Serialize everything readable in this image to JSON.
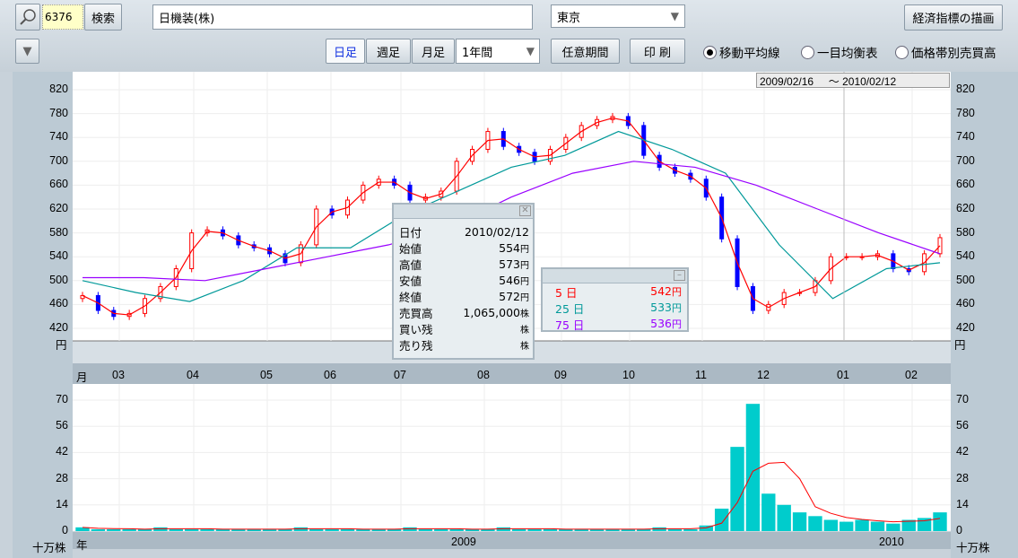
{
  "toolbar": {
    "code_value": "6376",
    "search_label": "検索",
    "company_name": "日機装(株)",
    "market_value": "東京",
    "econ_button": "経済指標の描画",
    "period_tabs": [
      "日足",
      "週足",
      "月足"
    ],
    "active_tab": "日足",
    "range_value": "1年間",
    "custom_period": "任意期間",
    "print": "印 刷",
    "radios": [
      {
        "label": "移動平均線",
        "checked": true
      },
      {
        "label": "一目均衡表",
        "checked": false
      },
      {
        "label": "価格帯別売買高",
        "checked": false
      }
    ]
  },
  "date_range": {
    "from": "2009/02/16",
    "sep": "～",
    "to": "2010/02/12"
  },
  "info_panel": {
    "rows": [
      {
        "k": "日付",
        "v": "2010/02/12",
        "u": ""
      },
      {
        "k": "始値",
        "v": "554",
        "u": "円"
      },
      {
        "k": "高値",
        "v": "573",
        "u": "円"
      },
      {
        "k": "安値",
        "v": "546",
        "u": "円"
      },
      {
        "k": "終値",
        "v": "572",
        "u": "円"
      },
      {
        "k": "売買高",
        "v": "1,065,000",
        "u": "株"
      },
      {
        "k": "買い残",
        "v": "",
        "u": "株"
      },
      {
        "k": "売り残",
        "v": "",
        "u": "株"
      }
    ]
  },
  "ma_panel": {
    "rows": [
      {
        "days": "5",
        "unit": "日",
        "value": "542",
        "yen": "円",
        "color": "#ff0000"
      },
      {
        "days": "25",
        "unit": "日",
        "value": "533",
        "yen": "円",
        "color": "#009999"
      },
      {
        "days": "75",
        "unit": "日",
        "value": "536",
        "yen": "円",
        "color": "#9900ff"
      }
    ]
  },
  "axis": {
    "price_unit": "円",
    "month_label": "月",
    "volume_unit": "十万株",
    "year_label": "年",
    "price_ticks": [
      820,
      780,
      740,
      700,
      660,
      620,
      580,
      540,
      500,
      460,
      420
    ],
    "volume_ticks": [
      70,
      56,
      42,
      28,
      14,
      0
    ],
    "months": [
      "03",
      "04",
      "05",
      "06",
      "07",
      "08",
      "09",
      "10",
      "11",
      "12",
      "01",
      "02"
    ],
    "years": [
      "2009",
      "2010"
    ]
  },
  "chart_data": {
    "type": "candlestick",
    "colors": {
      "up": "#ff0000",
      "down": "#0000ff",
      "ma5": "#ff0000",
      "ma25": "#009999",
      "ma75": "#9900ff",
      "volume": "#00cccc"
    },
    "weekly_close": [
      475,
      450,
      440,
      445,
      470,
      490,
      520,
      580,
      585,
      575,
      560,
      555,
      545,
      530,
      560,
      620,
      610,
      635,
      660,
      670,
      660,
      635,
      640,
      650,
      700,
      720,
      750,
      725,
      715,
      700,
      720,
      740,
      760,
      770,
      775,
      760,
      710,
      690,
      680,
      670,
      640,
      570,
      490,
      450,
      460,
      480,
      480,
      500,
      540,
      540,
      540,
      545,
      520,
      515,
      545,
      572
    ],
    "ma25": [
      500,
      480,
      465,
      500,
      555,
      555,
      610,
      650,
      690,
      710,
      750,
      720,
      680,
      560,
      470,
      520,
      530
    ],
    "ma75": [
      505,
      505,
      500,
      520,
      540,
      560,
      590,
      640,
      680,
      700,
      690,
      660,
      620,
      580,
      545
    ],
    "volume": [
      2,
      1,
      1,
      1,
      1,
      2,
      1,
      1,
      1,
      1,
      1,
      1,
      1,
      1,
      2,
      1,
      1,
      1,
      1,
      1,
      1,
      2,
      1,
      1,
      1,
      1,
      1,
      2,
      1,
      1,
      1,
      1,
      1,
      1,
      1,
      1,
      1,
      2,
      1,
      1,
      3,
      12,
      45,
      68,
      20,
      14,
      10,
      8,
      6,
      5,
      6,
      5,
      4,
      6,
      7,
      10
    ],
    "ylim": [
      420,
      820
    ],
    "volume_ylim": [
      0,
      70
    ]
  }
}
